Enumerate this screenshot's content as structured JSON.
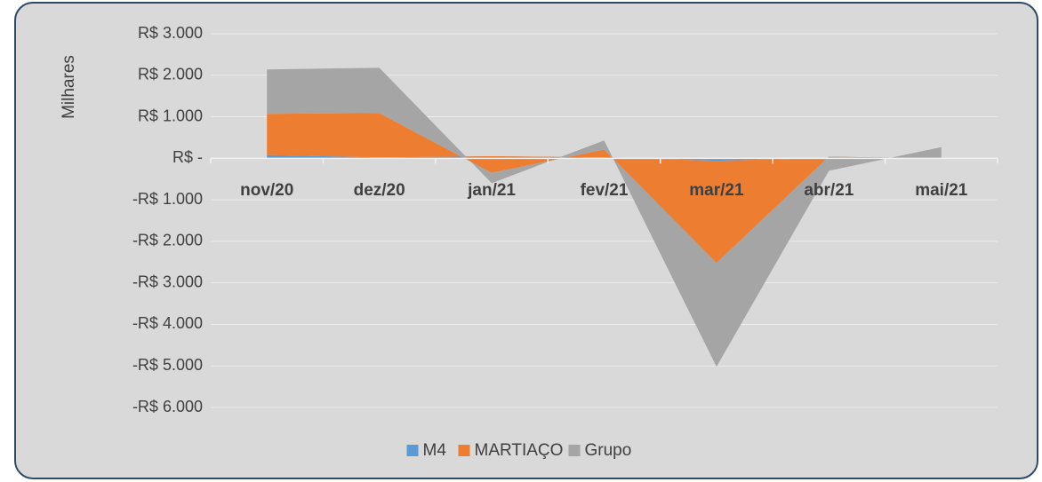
{
  "chart_data": {
    "type": "area",
    "stacked": true,
    "y_axis_label": "Milhares",
    "categories": [
      "nov/20",
      "dez/20",
      "jan/21",
      "fev/21",
      "mar/21",
      "abr/21",
      "mai/21"
    ],
    "series": [
      {
        "name": "M4",
        "color": "#5b9bd5",
        "values": [
          80,
          20,
          50,
          20,
          -60,
          10,
          0
        ]
      },
      {
        "name": "MARTIAÇO",
        "color": "#ed7d31",
        "values": [
          990,
          1070,
          -400,
          190,
          -2460,
          30,
          0
        ]
      },
      {
        "name": "Grupo",
        "color": "#a5a5a5",
        "values": [
          1070,
          1090,
          -250,
          220,
          -2500,
          -340,
          270
        ]
      }
    ],
    "ylim": [
      -6000,
      3000
    ],
    "yticks": [
      {
        "value": -6000,
        "label": "-R$ 6.000"
      },
      {
        "value": -5000,
        "label": "-R$ 5.000"
      },
      {
        "value": -4000,
        "label": "-R$ 4.000"
      },
      {
        "value": -3000,
        "label": "-R$ 3.000"
      },
      {
        "value": -2000,
        "label": "-R$ 2.000"
      },
      {
        "value": -1000,
        "label": "-R$ 1.000"
      },
      {
        "value": 0,
        "label": "R$ -"
      },
      {
        "value": 1000,
        "label": "R$ 1.000"
      },
      {
        "value": 2000,
        "label": "R$ 2.000"
      },
      {
        "value": 3000,
        "label": "R$ 3.000"
      }
    ],
    "grid": true,
    "legend": "bottom"
  }
}
